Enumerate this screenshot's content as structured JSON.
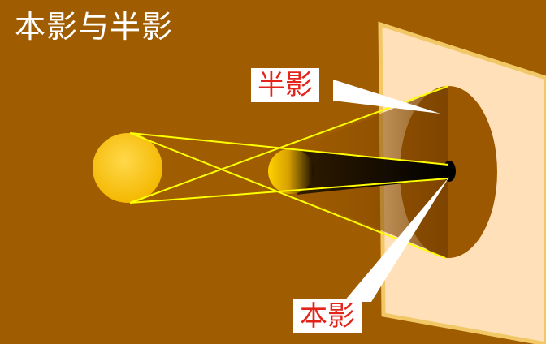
{
  "title": "本影与半影",
  "labels": {
    "penumbra": "半影",
    "umbra": "本影"
  },
  "colors": {
    "background": "#a05c00",
    "screen": "#ffe0b8",
    "screen_border": "#f1c865",
    "light_source": "#ffcc00",
    "rays": "#ffff00",
    "penumbra_region": "#9c5800",
    "umbra_region": "#000000",
    "label_text": "#e4241b"
  }
}
